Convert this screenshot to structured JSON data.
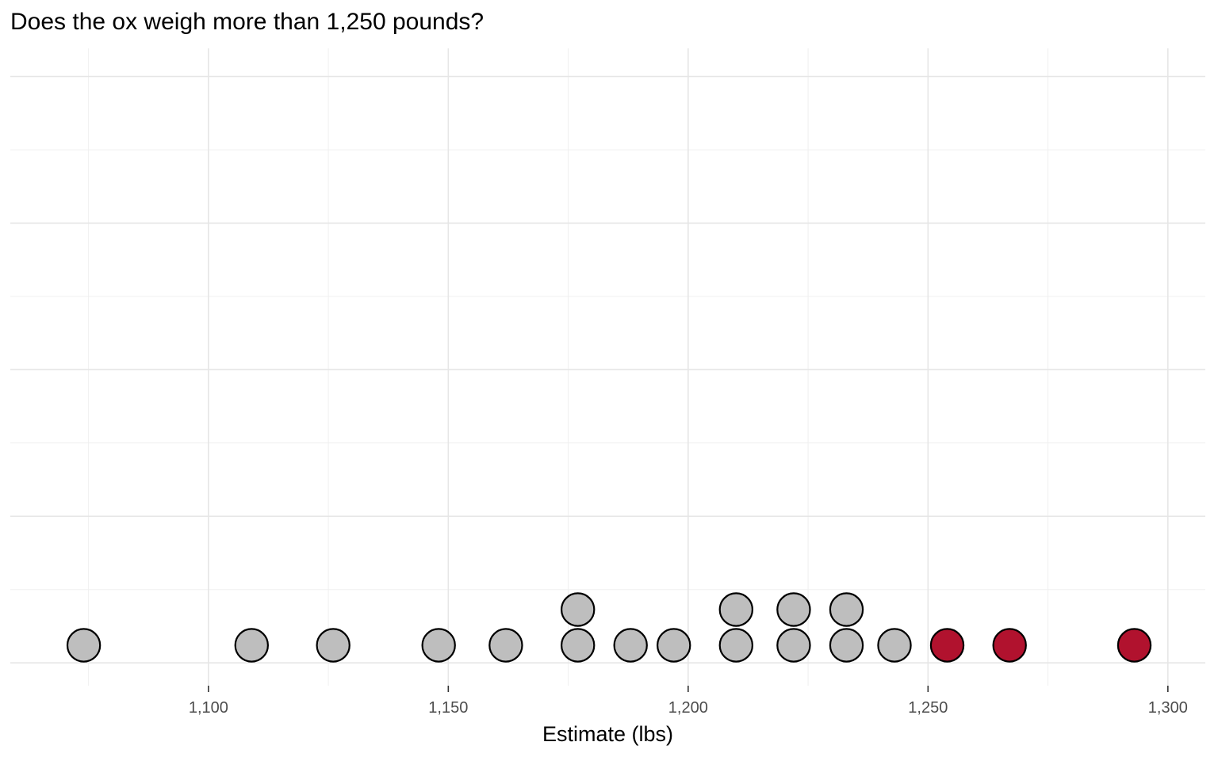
{
  "chart_data": {
    "type": "dotplot",
    "title": "Does the ox weigh more than 1,250 pounds?",
    "xlabel": "Estimate (lbs)",
    "ylabel": "",
    "legend": "none",
    "grid": true,
    "threshold": 1250,
    "x_ticks": [
      {
        "value": 1100,
        "label": "1,100"
      },
      {
        "value": 1150,
        "label": "1,150"
      },
      {
        "value": 1200,
        "label": "1,200"
      },
      {
        "value": 1250,
        "label": "1,250"
      },
      {
        "value": 1300,
        "label": "1,300"
      }
    ],
    "x_minor_gridlines": [
      1075,
      1125,
      1175,
      1225,
      1275
    ],
    "xlim": [
      1058.7,
      1307.8
    ],
    "y_major_gridlines": [
      0,
      0.25,
      0.5,
      0.75,
      1
    ],
    "y_minor_gridlines": [
      0.125,
      0.375,
      0.625,
      0.875
    ],
    "ylim": [
      -0.039,
      1.048
    ],
    "points": [
      {
        "estimate": 1074,
        "stack": 0
      },
      {
        "estimate": 1109,
        "stack": 0
      },
      {
        "estimate": 1126,
        "stack": 0
      },
      {
        "estimate": 1148,
        "stack": 0
      },
      {
        "estimate": 1162,
        "stack": 0
      },
      {
        "estimate": 1177,
        "stack": 0
      },
      {
        "estimate": 1177,
        "stack": 1
      },
      {
        "estimate": 1188,
        "stack": 0
      },
      {
        "estimate": 1197,
        "stack": 0
      },
      {
        "estimate": 1210,
        "stack": 0
      },
      {
        "estimate": 1210,
        "stack": 1
      },
      {
        "estimate": 1222,
        "stack": 0
      },
      {
        "estimate": 1222,
        "stack": 1
      },
      {
        "estimate": 1233,
        "stack": 0
      },
      {
        "estimate": 1233,
        "stack": 1
      },
      {
        "estimate": 1243,
        "stack": 0
      },
      {
        "estimate": 1254,
        "stack": 0
      },
      {
        "estimate": 1267,
        "stack": 0
      },
      {
        "estimate": 1293,
        "stack": 0
      }
    ],
    "colors": {
      "dot_at_or_below_threshold": "#bebebe",
      "dot_above_threshold": "#b1122e",
      "dot_outline": "#000000",
      "grid_major": "#e6e6e6",
      "grid_minor": "#f0f0f0",
      "tick_mark": "#333333",
      "tick_label": "#4d4d4d",
      "title_color": "#000000",
      "axis_title_color": "#000000",
      "background": "#ffffff"
    }
  }
}
